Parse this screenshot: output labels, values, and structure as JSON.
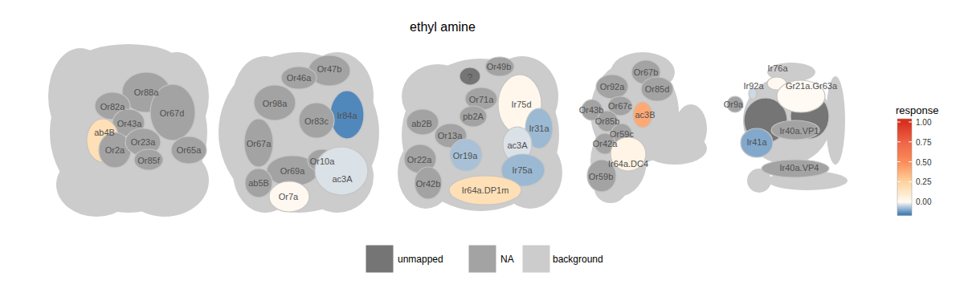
{
  "chart_data": {
    "type": "glomerulus_map",
    "title": "ethyl amine",
    "panels": [
      {
        "glomeruli": [
          {
            "label": "Or88a",
            "value": null
          },
          {
            "label": "Or82a",
            "value": null
          },
          {
            "label": "Or67d",
            "value": null
          },
          {
            "label": "Or43a",
            "value": null
          },
          {
            "label": "ab4B",
            "value": 0.18
          },
          {
            "label": "Or2a",
            "value": null
          },
          {
            "label": "Or23a",
            "value": null
          },
          {
            "label": "Or85f",
            "value": null
          },
          {
            "label": "Or65a",
            "value": null
          }
        ]
      },
      {
        "glomeruli": [
          {
            "label": "Or47b",
            "value": null
          },
          {
            "label": "Or46a",
            "value": null
          },
          {
            "label": "Ir84a",
            "value": -0.14
          },
          {
            "label": "Or98a",
            "value": null
          },
          {
            "label": "Or83c",
            "value": null
          },
          {
            "label": "Or67a",
            "value": null
          },
          {
            "label": "Or69a",
            "value": null
          },
          {
            "label": "Or10a",
            "value": null
          },
          {
            "label": "ab5B",
            "value": null
          },
          {
            "label": "ac3A",
            "value": -0.03
          },
          {
            "label": "Or7a",
            "value": 0.01
          }
        ]
      },
      {
        "glomeruli": [
          {
            "label": "?",
            "value": null,
            "unmapped": true
          },
          {
            "label": "Or49b",
            "value": null
          },
          {
            "label": "Ir75d",
            "value": 0.02
          },
          {
            "label": "Or71a",
            "value": null
          },
          {
            "label": "pb2A",
            "value": null
          },
          {
            "label": "ab2B",
            "value": null
          },
          {
            "label": "Or13a",
            "value": null
          },
          {
            "label": "Ir31a",
            "value": -0.08
          },
          {
            "label": "ac3A",
            "value": -0.03
          },
          {
            "label": "Or19a",
            "value": -0.07
          },
          {
            "label": "Or22a",
            "value": null
          },
          {
            "label": "Ir75a",
            "value": -0.08
          },
          {
            "label": "Or42b",
            "value": null
          },
          {
            "label": "Ir64a.DP1m",
            "value": 0.18
          }
        ]
      },
      {
        "glomeruli": [
          {
            "label": "Or67b",
            "value": null
          },
          {
            "label": "Or92a",
            "value": null
          },
          {
            "label": "Or85d",
            "value": null
          },
          {
            "label": "Or43b",
            "value": null
          },
          {
            "label": "Or67c",
            "value": null
          },
          {
            "label": "ac3B",
            "value": 0.4
          },
          {
            "label": "Or85b",
            "value": null
          },
          {
            "label": "Or59c",
            "value": null
          },
          {
            "label": "Or42a",
            "value": null
          },
          {
            "label": "Ir64a.DC4",
            "value": 0.04
          },
          {
            "label": "Or59b",
            "value": null
          }
        ]
      },
      {
        "glomeruli": [
          {
            "value": null,
            "unmapped": true
          },
          {
            "value": null,
            "unmapped": true
          },
          {
            "label": "Ir76a",
            "value": 0.01
          },
          {
            "label": "Gr21a.Gr63a",
            "value": 0.0
          },
          {
            "label": "Ir92a",
            "value": -0.04
          },
          {
            "label": "Or9a",
            "value": null
          },
          {
            "label": "Ir40a.VP1",
            "value": null
          },
          {
            "label": "Ir41a",
            "value": -0.1
          },
          {
            "label": "Ir40a.VP4",
            "value": null
          }
        ]
      }
    ],
    "colorbar": {
      "title": "response",
      "range": [
        -0.17,
        1.04
      ],
      "ticks": [
        {
          "value": 0,
          "label": "0.00"
        },
        {
          "value": 0.25,
          "label": "0.25"
        },
        {
          "value": 0.5,
          "label": "0.50"
        },
        {
          "value": 0.75,
          "label": "0.75"
        },
        {
          "value": 1,
          "label": "1.00"
        }
      ]
    },
    "legend_items": [
      "unmapped",
      "NA",
      "background"
    ]
  }
}
